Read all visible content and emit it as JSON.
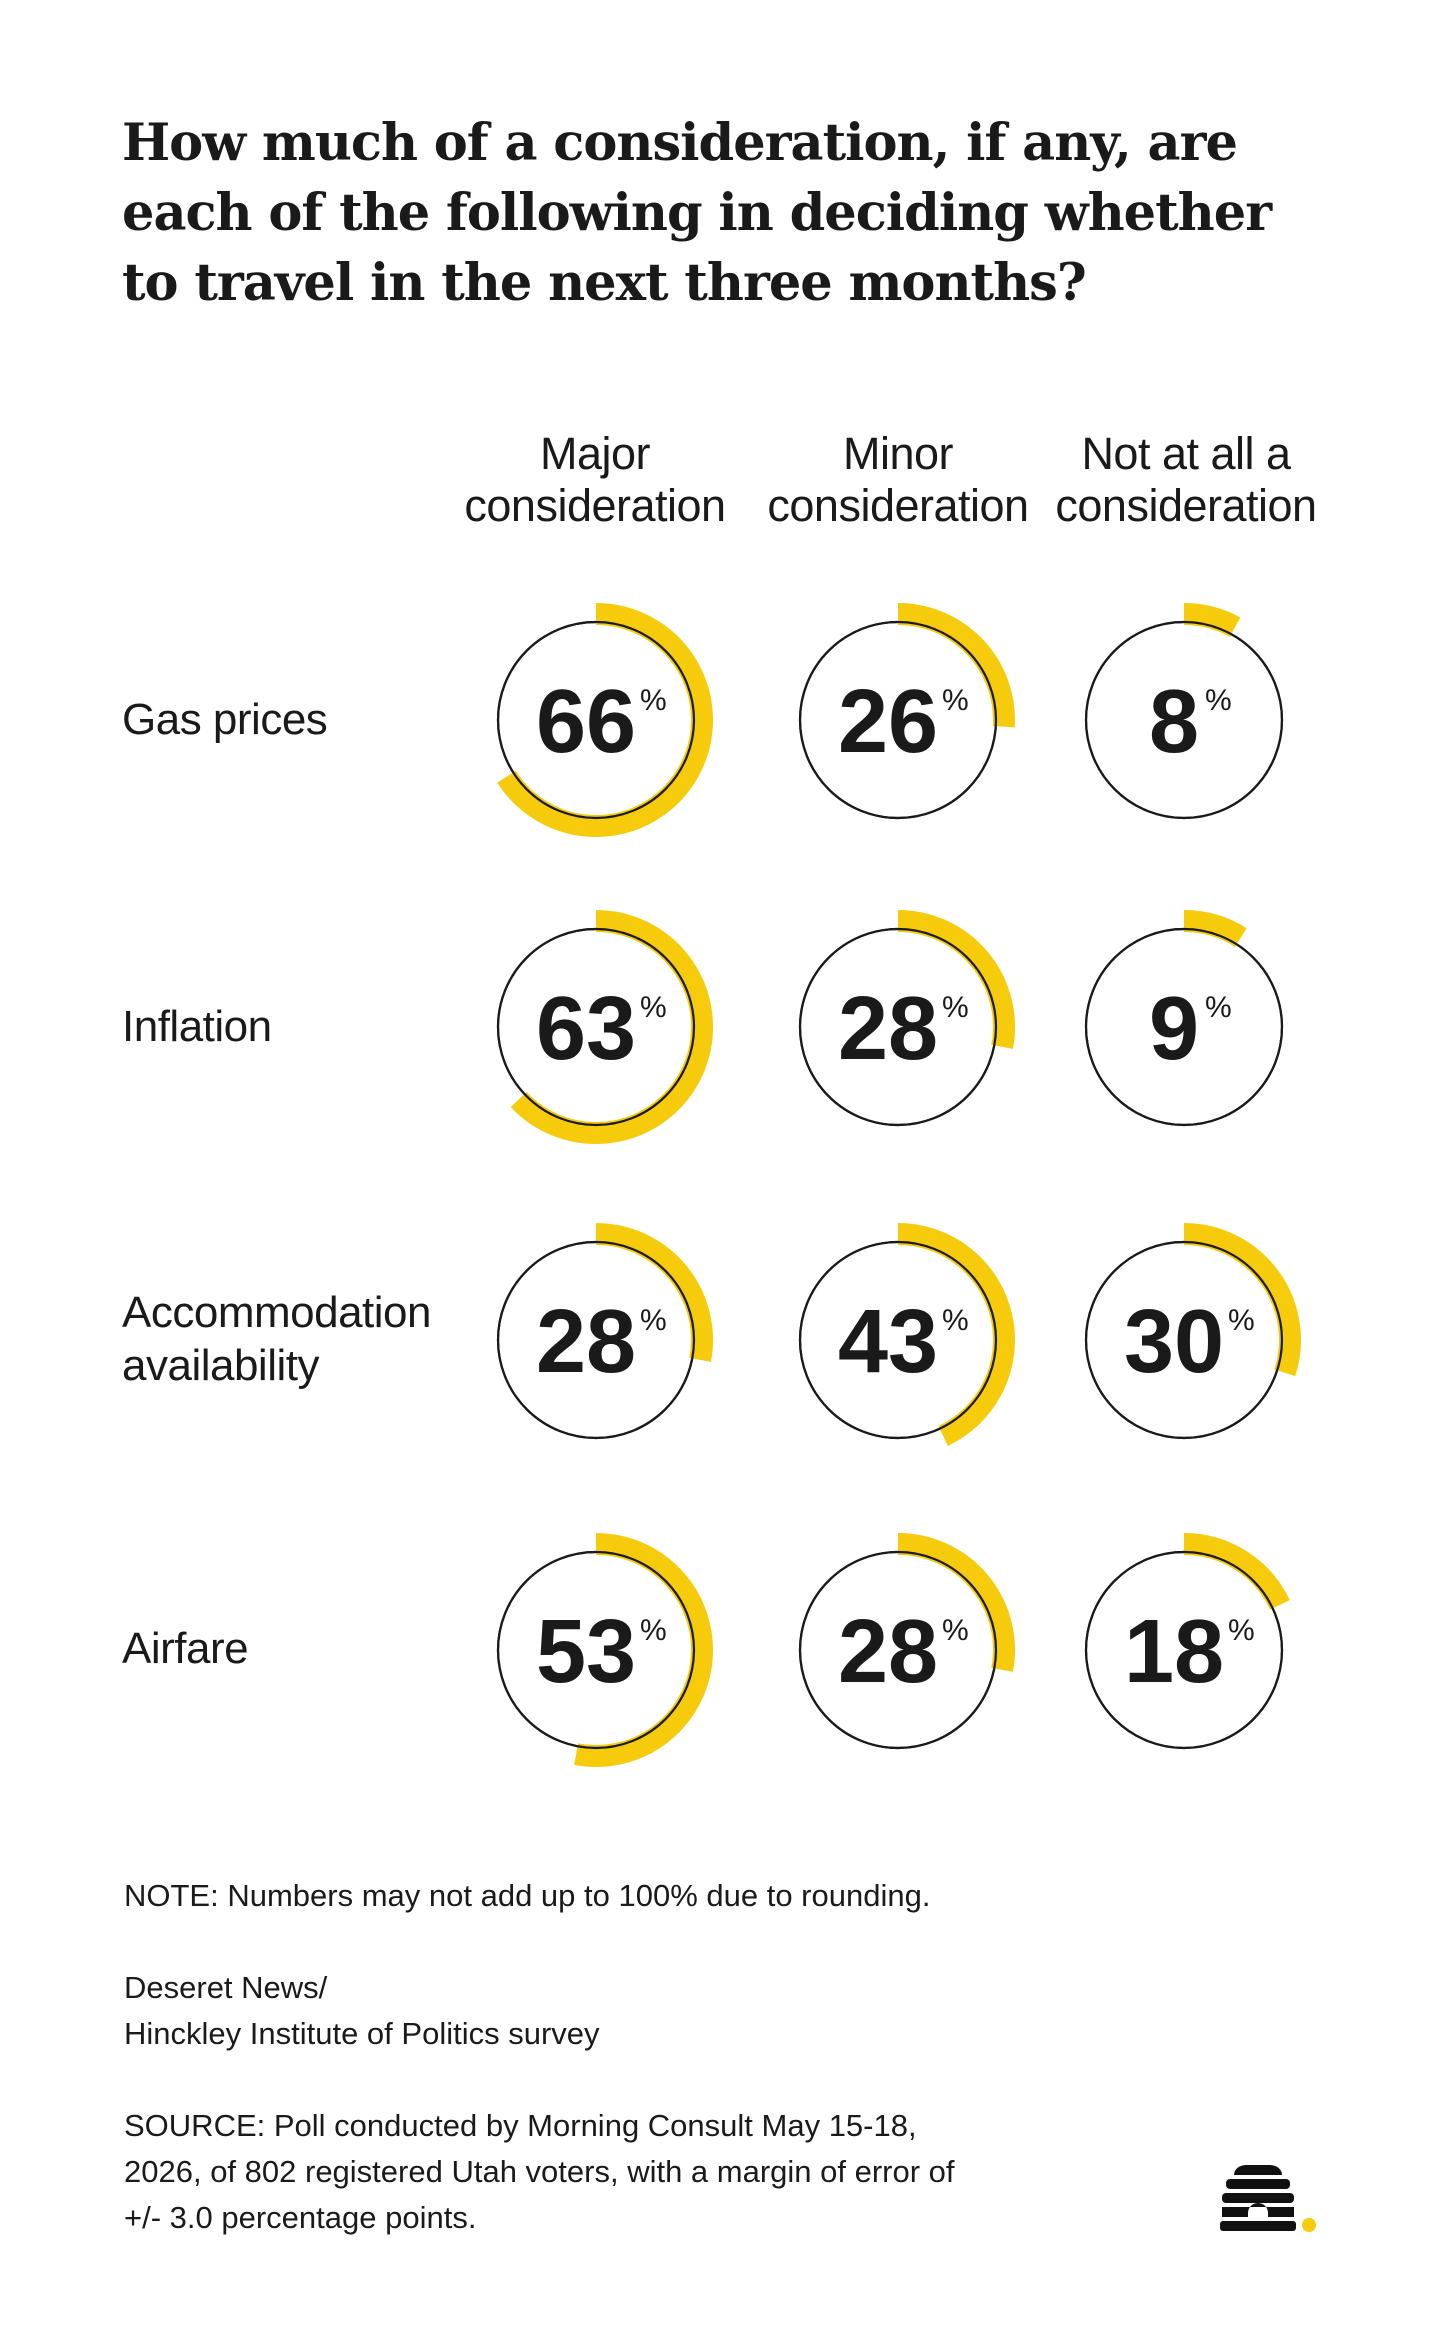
{
  "title": "How much of a consideration, if any, are each of the following in deciding whether to travel in the next three months?",
  "columns": [
    "Major\nconsideration",
    "Minor\nconsideration",
    "Not at all a\nconsideration"
  ],
  "rows": [
    "Gas prices",
    "Inflation",
    "Accommodation\navailability",
    "Airfare"
  ],
  "percent_symbol": "%",
  "accent_color": "#F5CB0C",
  "chart_data": {
    "type": "donut",
    "title": "How much of a consideration, if any, are each of the following in deciding whether to travel in the next three months?",
    "unit": "%",
    "categories": [
      "Gas prices",
      "Inflation",
      "Accommodation availability",
      "Airfare"
    ],
    "series": [
      {
        "name": "Major consideration",
        "values": [
          66,
          63,
          28,
          53
        ]
      },
      {
        "name": "Minor consideration",
        "values": [
          26,
          28,
          43,
          28
        ]
      },
      {
        "name": "Not at all a consideration",
        "values": [
          8,
          9,
          30,
          18
        ]
      }
    ]
  },
  "footer": {
    "note": "NOTE: Numbers may not add up to 100% due to rounding.",
    "credit": "Deseret News/\nHinckley Institute of Politics survey",
    "source": "SOURCE: Poll conducted by Morning Consult May 15-18,\n2026, of 802 registered Utah voters, with a margin of error of\n+/- 3.0 percentage points."
  },
  "logo_icon": "beehive-logo-icon"
}
